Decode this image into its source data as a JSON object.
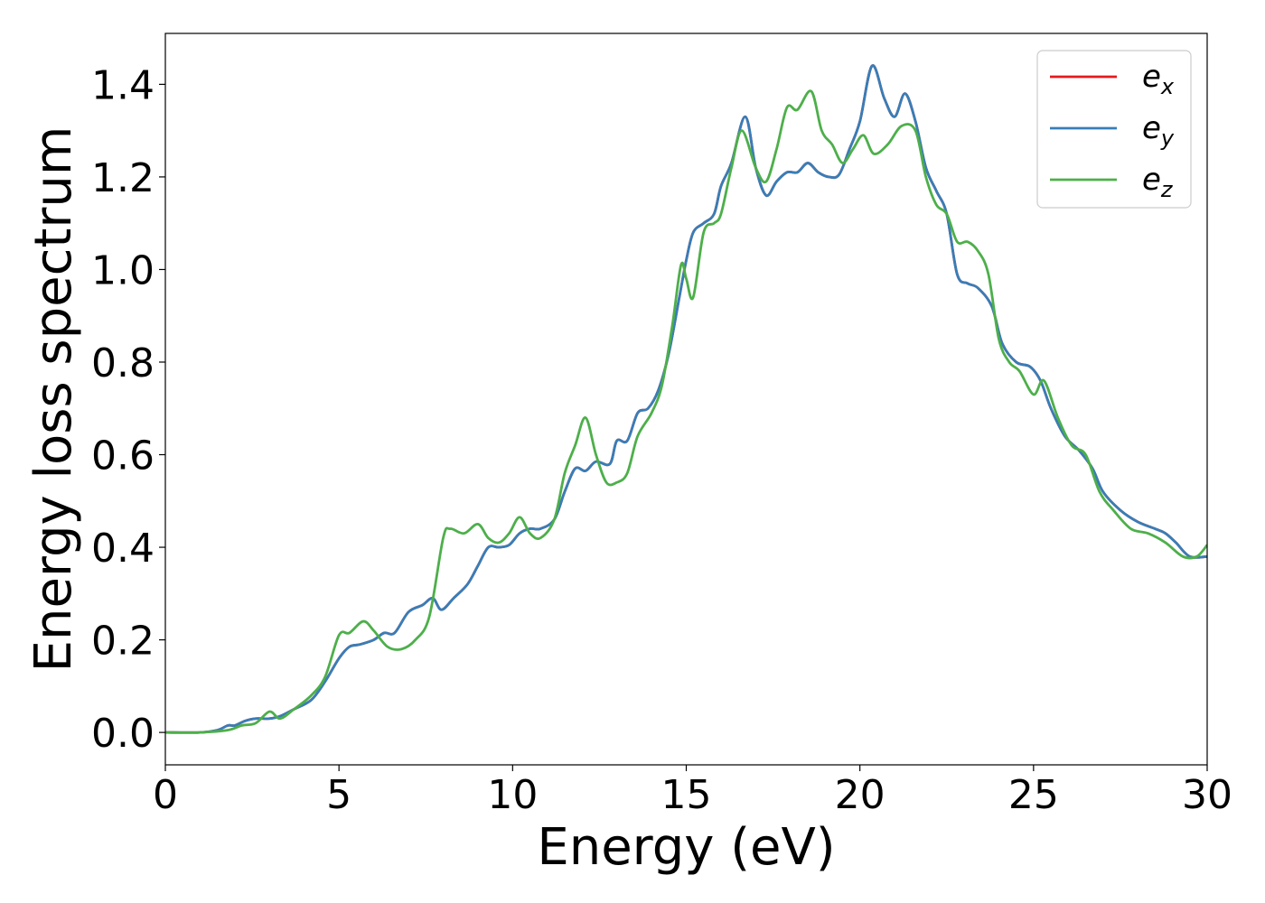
{
  "chart_data": {
    "type": "line",
    "xlabel": "Energy (eV)",
    "ylabel": "Energy loss spectrum",
    "xlim": [
      0,
      30
    ],
    "ylim": [
      -0.07,
      1.51
    ],
    "x_ticks": [
      0,
      5,
      10,
      15,
      20,
      25,
      30
    ],
    "x_tick_labels": [
      "0",
      "5",
      "10",
      "15",
      "20",
      "25",
      "30"
    ],
    "y_ticks": [
      0.0,
      0.2,
      0.4,
      0.6,
      0.8,
      1.0,
      1.2,
      1.4
    ],
    "y_tick_labels": [
      "0.0",
      "0.2",
      "0.4",
      "0.6",
      "0.8",
      "1.0",
      "1.2",
      "1.4"
    ],
    "grid": false,
    "legend_position": "top-right",
    "series": [
      {
        "name": "e",
        "subscript": "x",
        "color": "#e41a1c",
        "x": [
          0,
          1,
          1.5,
          1.8,
          2.0,
          2.3,
          2.6,
          3.0,
          3.3,
          3.7,
          4.2,
          4.6,
          5.0,
          5.3,
          5.6,
          6.0,
          6.3,
          6.6,
          7.0,
          7.4,
          7.7,
          7.95,
          8.3,
          8.7,
          9.0,
          9.3,
          9.6,
          9.9,
          10.2,
          10.5,
          10.8,
          11.2,
          11.5,
          11.8,
          12.1,
          12.4,
          12.8,
          13.0,
          13.3,
          13.6,
          13.9,
          14.2,
          14.5,
          14.8,
          15.0,
          15.2,
          15.5,
          15.8,
          16.0,
          16.3,
          16.7,
          17.0,
          17.3,
          17.6,
          17.9,
          18.2,
          18.5,
          18.8,
          19.1,
          19.4,
          19.7,
          20.0,
          20.35,
          20.7,
          21.0,
          21.3,
          21.6,
          21.9,
          22.2,
          22.5,
          22.8,
          23.1,
          23.4,
          23.8,
          24.1,
          24.5,
          24.9,
          25.2,
          25.5,
          25.9,
          26.3,
          26.7,
          27.0,
          27.5,
          28.0,
          28.5,
          28.8,
          29.1,
          29.5,
          30.0
        ],
        "values": [
          0.0,
          0.0,
          0.005,
          0.015,
          0.015,
          0.025,
          0.03,
          0.03,
          0.035,
          0.05,
          0.07,
          0.11,
          0.16,
          0.185,
          0.19,
          0.2,
          0.215,
          0.215,
          0.26,
          0.275,
          0.29,
          0.265,
          0.29,
          0.32,
          0.36,
          0.4,
          0.4,
          0.405,
          0.43,
          0.44,
          0.44,
          0.46,
          0.52,
          0.57,
          0.565,
          0.585,
          0.58,
          0.63,
          0.63,
          0.69,
          0.7,
          0.74,
          0.82,
          0.94,
          1.02,
          1.08,
          1.1,
          1.12,
          1.18,
          1.23,
          1.33,
          1.22,
          1.16,
          1.19,
          1.21,
          1.21,
          1.23,
          1.21,
          1.2,
          1.205,
          1.26,
          1.32,
          1.44,
          1.37,
          1.33,
          1.38,
          1.32,
          1.22,
          1.17,
          1.12,
          0.99,
          0.97,
          0.96,
          0.92,
          0.84,
          0.8,
          0.79,
          0.76,
          0.7,
          0.64,
          0.61,
          0.57,
          0.52,
          0.48,
          0.455,
          0.44,
          0.43,
          0.41,
          0.38,
          0.38
        ]
      },
      {
        "name": "e",
        "subscript": "y",
        "color": "#377eb8",
        "x": [
          0,
          1,
          1.5,
          1.8,
          2.0,
          2.3,
          2.6,
          3.0,
          3.3,
          3.7,
          4.2,
          4.6,
          5.0,
          5.3,
          5.6,
          6.0,
          6.3,
          6.6,
          7.0,
          7.4,
          7.7,
          7.95,
          8.3,
          8.7,
          9.0,
          9.3,
          9.6,
          9.9,
          10.2,
          10.5,
          10.8,
          11.2,
          11.5,
          11.8,
          12.1,
          12.4,
          12.8,
          13.0,
          13.3,
          13.6,
          13.9,
          14.2,
          14.5,
          14.8,
          15.0,
          15.2,
          15.5,
          15.8,
          16.0,
          16.3,
          16.7,
          17.0,
          17.3,
          17.6,
          17.9,
          18.2,
          18.5,
          18.8,
          19.1,
          19.4,
          19.7,
          20.0,
          20.35,
          20.7,
          21.0,
          21.3,
          21.6,
          21.9,
          22.2,
          22.5,
          22.8,
          23.1,
          23.4,
          23.8,
          24.1,
          24.5,
          24.9,
          25.2,
          25.5,
          25.9,
          26.3,
          26.7,
          27.0,
          27.5,
          28.0,
          28.5,
          28.8,
          29.1,
          29.5,
          30.0
        ],
        "values": [
          0.0,
          0.0,
          0.005,
          0.015,
          0.015,
          0.025,
          0.03,
          0.03,
          0.035,
          0.05,
          0.07,
          0.11,
          0.16,
          0.185,
          0.19,
          0.2,
          0.215,
          0.215,
          0.26,
          0.275,
          0.29,
          0.265,
          0.29,
          0.32,
          0.36,
          0.4,
          0.4,
          0.405,
          0.43,
          0.44,
          0.44,
          0.46,
          0.52,
          0.57,
          0.565,
          0.585,
          0.58,
          0.63,
          0.63,
          0.69,
          0.7,
          0.74,
          0.82,
          0.94,
          1.02,
          1.08,
          1.1,
          1.12,
          1.18,
          1.23,
          1.33,
          1.22,
          1.16,
          1.19,
          1.21,
          1.21,
          1.23,
          1.21,
          1.2,
          1.205,
          1.26,
          1.32,
          1.44,
          1.37,
          1.33,
          1.38,
          1.32,
          1.22,
          1.17,
          1.12,
          0.99,
          0.97,
          0.96,
          0.92,
          0.84,
          0.8,
          0.79,
          0.76,
          0.7,
          0.64,
          0.61,
          0.57,
          0.52,
          0.48,
          0.455,
          0.44,
          0.43,
          0.41,
          0.38,
          0.38
        ]
      },
      {
        "name": "e",
        "subscript": "z",
        "color": "#4daf4a",
        "x": [
          0,
          1,
          1.8,
          2.2,
          2.6,
          3.0,
          3.3,
          3.7,
          4.2,
          4.6,
          5.0,
          5.3,
          5.7,
          6.0,
          6.4,
          6.8,
          7.2,
          7.6,
          8.0,
          8.2,
          8.6,
          9.0,
          9.3,
          9.6,
          9.9,
          10.2,
          10.5,
          10.8,
          11.2,
          11.5,
          11.8,
          12.1,
          12.4,
          12.7,
          13.0,
          13.3,
          13.6,
          14.0,
          14.3,
          14.6,
          14.85,
          15.0,
          15.2,
          15.5,
          15.8,
          16.0,
          16.3,
          16.6,
          17.0,
          17.3,
          17.6,
          17.9,
          18.2,
          18.6,
          18.9,
          19.2,
          19.5,
          19.8,
          20.1,
          20.4,
          20.8,
          21.2,
          21.6,
          21.9,
          22.2,
          22.5,
          22.8,
          23.1,
          23.4,
          23.7,
          24.0,
          24.3,
          24.6,
          25.0,
          25.3,
          25.7,
          26.1,
          26.5,
          26.9,
          27.3,
          27.8,
          28.3,
          28.8,
          29.3,
          29.7,
          30.0
        ],
        "values": [
          0.0,
          0.0,
          0.005,
          0.015,
          0.02,
          0.045,
          0.03,
          0.05,
          0.08,
          0.12,
          0.21,
          0.215,
          0.24,
          0.22,
          0.185,
          0.18,
          0.2,
          0.25,
          0.42,
          0.44,
          0.43,
          0.45,
          0.42,
          0.41,
          0.43,
          0.465,
          0.43,
          0.42,
          0.46,
          0.56,
          0.62,
          0.68,
          0.6,
          0.54,
          0.54,
          0.56,
          0.64,
          0.69,
          0.75,
          0.88,
          1.01,
          0.98,
          0.94,
          1.08,
          1.1,
          1.12,
          1.22,
          1.3,
          1.22,
          1.19,
          1.26,
          1.35,
          1.345,
          1.385,
          1.3,
          1.27,
          1.23,
          1.26,
          1.29,
          1.25,
          1.27,
          1.31,
          1.3,
          1.2,
          1.14,
          1.12,
          1.06,
          1.06,
          1.04,
          0.99,
          0.85,
          0.8,
          0.78,
          0.73,
          0.76,
          0.68,
          0.62,
          0.6,
          0.52,
          0.48,
          0.44,
          0.43,
          0.41,
          0.38,
          0.38,
          0.405
        ]
      }
    ]
  }
}
